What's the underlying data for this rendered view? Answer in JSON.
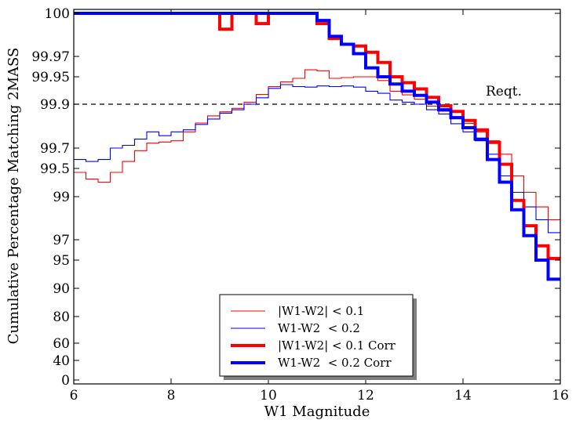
{
  "chart_data": {
    "type": "line",
    "title": "",
    "xlabel": "W1 Magnitude",
    "ylabel": "Cumulative Percentage Matching 2MASS",
    "xlim": [
      6,
      16
    ],
    "x_ticks": [
      6,
      8,
      10,
      12,
      14,
      16
    ],
    "y_scale": "reversed-log (ticks show percent matched; axis is log of 100 - percent)",
    "y_ticks": [
      "100",
      "99.97",
      "99.95",
      "99.9",
      "99.7",
      "99.5",
      "99",
      "97",
      "95",
      "90",
      "80",
      "60",
      "40",
      "0"
    ],
    "y_tick_values": [
      100,
      99.97,
      99.95,
      99.9,
      99.7,
      99.5,
      99,
      97,
      95,
      90,
      80,
      60,
      40,
      0
    ],
    "reference_line": {
      "y": 99.9,
      "label": "Reqt.",
      "style": "dashed"
    },
    "legend": {
      "placement": "bottom-center",
      "shadow": true
    },
    "series": [
      {
        "name": "|W1-W2| < 0.1",
        "color": "#ff0000",
        "width": "thin",
        "x": [
          6.0,
          6.25,
          6.5,
          6.75,
          7.0,
          7.25,
          7.5,
          7.75,
          8.0,
          8.25,
          8.5,
          8.75,
          9.0,
          9.25,
          9.5,
          9.75,
          10.0,
          10.25,
          10.5,
          10.75,
          11.0,
          11.25,
          11.5,
          11.75,
          12.0,
          12.25,
          12.5,
          12.75,
          13.0,
          13.25,
          13.5,
          13.75,
          14.0,
          14.25,
          14.5,
          14.75,
          15.0,
          15.25,
          15.5,
          15.75
        ],
        "values": [
          99.45,
          99.35,
          99.3,
          99.45,
          99.58,
          99.68,
          99.735,
          99.742,
          99.75,
          99.8,
          99.84,
          99.866,
          99.879,
          99.889,
          99.905,
          99.922,
          99.936,
          99.943,
          99.948,
          99.958,
          99.957,
          99.948,
          99.949,
          99.95,
          99.95,
          99.945,
          99.928,
          99.921,
          99.912,
          99.895,
          99.881,
          99.864,
          99.838,
          99.8,
          99.75,
          99.65,
          99.4,
          99.1,
          98.7,
          98.2
        ]
      },
      {
        "name": "W1-W2  < 0.2",
        "color": "#0000ff",
        "width": "thin",
        "x": [
          6.0,
          6.25,
          6.5,
          6.75,
          7.0,
          7.25,
          7.5,
          7.75,
          8.0,
          8.25,
          8.5,
          8.75,
          9.0,
          9.25,
          9.5,
          9.75,
          10.0,
          10.25,
          10.5,
          10.75,
          11.0,
          11.25,
          11.5,
          11.75,
          12.0,
          12.25,
          12.5,
          12.75,
          13.0,
          13.25,
          13.5,
          13.75,
          14.0,
          14.25,
          14.5,
          14.75,
          15.0,
          15.25,
          15.5,
          15.75
        ],
        "values": [
          99.6,
          99.58,
          99.6,
          99.7,
          99.72,
          99.76,
          99.8,
          99.78,
          99.8,
          99.81,
          99.834,
          99.855,
          99.875,
          99.885,
          99.9,
          99.915,
          99.933,
          99.939,
          99.936,
          99.935,
          99.937,
          99.936,
          99.937,
          99.935,
          99.928,
          99.924,
          99.91,
          99.905,
          99.9,
          99.885,
          99.872,
          99.837,
          99.8,
          99.75,
          99.65,
          99.4,
          99.1,
          98.7,
          98.2,
          97.5
        ]
      },
      {
        "name": "|W1-W2| < 0.1 Corr",
        "color": "#ff0000",
        "width": "thick",
        "x": [
          6.0,
          6.25,
          6.5,
          6.75,
          7.0,
          7.25,
          7.5,
          7.75,
          8.0,
          8.25,
          8.5,
          8.75,
          9.0,
          9.25,
          9.5,
          9.75,
          10.0,
          10.25,
          10.5,
          10.75,
          11.0,
          11.25,
          11.5,
          11.75,
          12.0,
          12.25,
          12.5,
          12.75,
          13.0,
          13.25,
          13.5,
          13.75,
          14.0,
          14.25,
          14.5,
          14.75,
          15.0,
          15.25,
          15.5,
          15.75
        ],
        "values": [
          100,
          100,
          100,
          100,
          100,
          100,
          100,
          100,
          100,
          100,
          100,
          100,
          99.985,
          99.99,
          100,
          99.987,
          99.99,
          99.997,
          100,
          100,
          99.987,
          99.981,
          99.978,
          99.977,
          99.973,
          99.965,
          99.95,
          99.942,
          99.932,
          99.916,
          99.896,
          99.88,
          99.85,
          99.81,
          99.74,
          99.55,
          98.9,
          97.9,
          96.5,
          95.2
        ]
      },
      {
        "name": "W1-W2  < 0.2 Corr",
        "color": "#0000ff",
        "width": "thick",
        "x": [
          6.0,
          6.25,
          6.5,
          6.75,
          7.0,
          7.25,
          7.5,
          7.75,
          8.0,
          8.25,
          8.5,
          8.75,
          9.0,
          9.25,
          9.5,
          9.75,
          10.0,
          10.25,
          10.5,
          10.75,
          11.0,
          11.25,
          11.5,
          11.75,
          12.0,
          12.25,
          12.5,
          12.75,
          13.0,
          13.25,
          13.5,
          13.75,
          14.0,
          14.25,
          14.5,
          14.75,
          15.0,
          15.25,
          15.5,
          15.75
        ],
        "values": [
          100,
          100,
          100,
          100,
          100,
          100,
          100,
          100,
          100,
          100,
          100,
          100,
          100,
          100,
          100,
          99.998,
          99.997,
          99.999,
          100,
          100,
          99.988,
          99.982,
          99.978,
          99.972,
          99.96,
          99.95,
          99.94,
          99.928,
          99.92,
          99.905,
          99.885,
          99.86,
          99.82,
          99.76,
          99.6,
          99.3,
          98.6,
          97.3,
          95.0,
          92.0
        ]
      }
    ]
  }
}
